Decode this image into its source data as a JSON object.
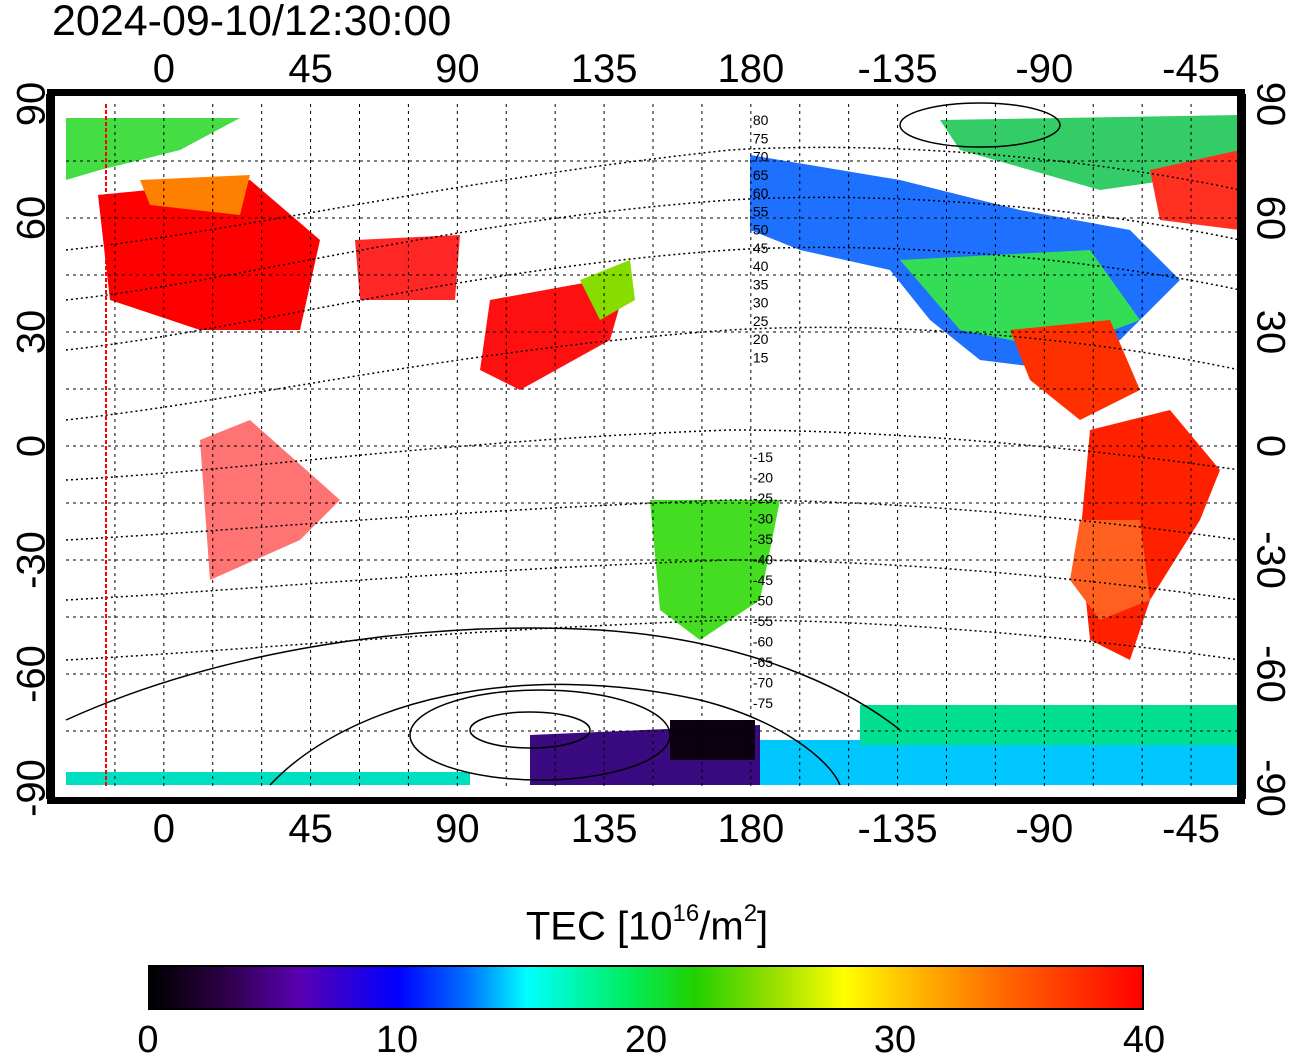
{
  "timestamp": "2024-09-10/12:30:00",
  "map": {
    "projection": "equirectangular",
    "center_longitude": 150,
    "red_marker_longitude": -8,
    "x_ticks": [
      "0",
      "45",
      "90",
      "135",
      "180",
      "-135",
      "-90",
      "-45"
    ],
    "x_tick_lons": [
      0,
      45,
      90,
      135,
      180,
      225,
      270,
      315
    ],
    "y_ticks_left": [
      "90",
      "60",
      "30",
      "0",
      "-30",
      "-60",
      "-90"
    ],
    "y_ticks_right": [
      "90",
      "60",
      "30",
      "0",
      "-30",
      "-60",
      "-90"
    ],
    "y_tick_lats": [
      90,
      60,
      30,
      0,
      -30,
      -60,
      -90
    ],
    "magnetic_latitude_labels": [
      "80",
      "75",
      "70",
      "65",
      "60",
      "55",
      "50",
      "45",
      "40",
      "35",
      "30",
      "25",
      "20",
      "15",
      "-15",
      "-20",
      "-25",
      "-30",
      "-35",
      "-40",
      "-45",
      "-50",
      "-55",
      "-60",
      "-65",
      "-70",
      "-75"
    ],
    "coverage_colors": {
      "europe": "#ff0000",
      "east_asia": "#ff1010",
      "north_america": "#1e90ff",
      "south_america": "#ff2000",
      "antarctic": "#00e0c0",
      "oceania": "#44dd22"
    }
  },
  "colorbar": {
    "title_prefix": "TEC  [10",
    "title_exp1": "16",
    "title_mid": "/m",
    "title_exp2": "2",
    "title_suffix": "]",
    "min": 0,
    "max": 40,
    "labels": [
      "0",
      "10",
      "20",
      "30",
      "40"
    ],
    "stops": [
      "#000000",
      "#5a00b0",
      "#0000ff",
      "#00ffff",
      "#00ee60",
      "#99e000",
      "#ffff00",
      "#ff6000",
      "#ff0000"
    ]
  }
}
